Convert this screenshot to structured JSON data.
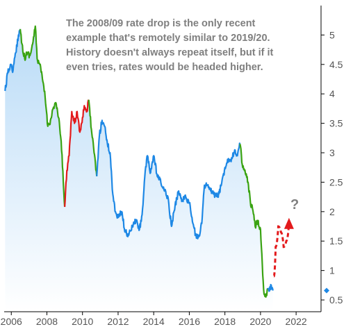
{
  "chart_data": {
    "type": "line",
    "title": "",
    "xlabel": "",
    "ylabel": "",
    "xlim": [
      2005.6,
      2023.4
    ],
    "ylim": [
      0.3,
      5.5
    ],
    "x_ticks": [
      2006,
      2008,
      2010,
      2012,
      2014,
      2016,
      2018,
      2020,
      2022
    ],
    "x_tick_labels": [
      "2006",
      "2008",
      "2010",
      "2012",
      "2014",
      "2016",
      "2018",
      "2020",
      "2022"
    ],
    "y_ticks": [
      0.5,
      1,
      1.5,
      2,
      2.5,
      3,
      3.5,
      4,
      4.5,
      5
    ],
    "y_tick_labels": [
      "0.5",
      "1",
      "1.5",
      "2",
      "2.5",
      "3",
      "3.5",
      "4",
      "4.5",
      "5"
    ],
    "y_axis_position": "right",
    "grid": false,
    "annotation": {
      "lines": [
        "The 2008/09 rate drop is the only recent",
        "example that's remotely similar to 2019/20.",
        "History doesn't always repeat itself, but if it",
        "even tries, rates would be headed higher."
      ],
      "question_mark": "?"
    },
    "last_value_marker": {
      "y": 0.66,
      "color": "#1e88e5"
    },
    "colors": {
      "base_line": "#1e88e5",
      "green": "#3aa312",
      "red": "#e31a1c",
      "projection": "#e31a1c",
      "area_fill_top": "#b9dbf7",
      "area_fill_bottom": "#ffffff",
      "axis": "#000000",
      "annotation_text": "#7f7f7f"
    },
    "series": [
      {
        "color": "blue",
        "x": [
          2005.65,
          2005.8,
          2005.95,
          2006.1,
          2006.25,
          2006.4,
          2006.5
        ],
        "values": [
          4.05,
          4.35,
          4.5,
          4.4,
          4.7,
          5.0,
          5.1
        ]
      },
      {
        "color": "green",
        "x": [
          2006.5,
          2006.6,
          2006.75,
          2006.9,
          2007.05,
          2007.2,
          2007.35,
          2007.45,
          2007.6,
          2007.75,
          2007.9,
          2008.05,
          2008.2,
          2008.35,
          2008.5,
          2008.65,
          2008.8,
          2009.0
        ],
        "values": [
          5.1,
          4.85,
          4.6,
          4.7,
          4.65,
          4.85,
          5.15,
          4.6,
          4.5,
          4.25,
          3.95,
          3.45,
          3.55,
          3.75,
          3.85,
          3.6,
          3.2,
          2.08
        ]
      },
      {
        "color": "red",
        "x": [
          2009.0,
          2009.12,
          2009.25,
          2009.4,
          2009.55,
          2009.7,
          2009.85,
          2010.0,
          2010.1,
          2010.25,
          2010.35
        ],
        "values": [
          2.08,
          2.7,
          2.95,
          3.7,
          3.5,
          3.7,
          3.35,
          3.6,
          3.8,
          3.7,
          3.9
        ]
      },
      {
        "color": "green",
        "x": [
          2010.35,
          2010.5,
          2010.65,
          2010.8
        ],
        "values": [
          3.9,
          3.4,
          3.0,
          2.6
        ]
      },
      {
        "color": "blue",
        "x": [
          2010.8,
          2010.95,
          2011.1,
          2011.25,
          2011.4,
          2011.55,
          2011.7,
          2011.85,
          2012.0,
          2012.2,
          2012.4,
          2012.6,
          2012.8,
          2013.0,
          2013.2,
          2013.35,
          2013.5,
          2013.65,
          2013.8,
          2014.0,
          2014.2,
          2014.4,
          2014.6,
          2014.8,
          2015.0,
          2015.2,
          2015.4,
          2015.6,
          2015.8,
          2016.0,
          2016.2,
          2016.4,
          2016.55,
          2016.7,
          2016.85,
          2017.0,
          2017.2,
          2017.4,
          2017.6,
          2017.8,
          2018.0,
          2018.2,
          2018.4,
          2018.55,
          2018.7,
          2018.85
        ],
        "values": [
          2.6,
          3.3,
          3.55,
          3.45,
          3.15,
          3.0,
          2.3,
          2.0,
          1.9,
          2.0,
          1.65,
          1.6,
          1.75,
          1.85,
          1.7,
          1.95,
          2.6,
          2.95,
          2.65,
          2.95,
          2.6,
          2.5,
          2.35,
          2.25,
          1.75,
          2.1,
          2.35,
          2.2,
          2.25,
          2.15,
          1.8,
          1.55,
          1.6,
          1.8,
          2.45,
          2.45,
          2.35,
          2.3,
          2.25,
          2.45,
          2.75,
          2.9,
          2.9,
          3.05,
          2.95,
          3.15
        ]
      },
      {
        "color": "green",
        "x": [
          2018.85,
          2019.0,
          2019.15,
          2019.3,
          2019.45,
          2019.55,
          2019.7,
          2019.85,
          2020.0,
          2020.1,
          2020.2,
          2020.3,
          2020.4
        ],
        "values": [
          3.15,
          2.75,
          2.65,
          2.5,
          2.1,
          2.05,
          1.75,
          1.85,
          1.7,
          1.1,
          0.6,
          0.55,
          0.7
        ]
      },
      {
        "color": "blue",
        "x": [
          2020.4,
          2020.5,
          2020.6,
          2020.7
        ],
        "values": [
          0.7,
          0.65,
          0.75,
          0.66
        ]
      },
      {
        "color": "red-dashed",
        "x": [
          2020.75,
          2020.85,
          2021.0,
          2021.15,
          2021.3,
          2021.45,
          2021.6
        ],
        "values": [
          0.9,
          1.4,
          1.75,
          1.65,
          1.4,
          1.5,
          1.8
        ]
      }
    ]
  }
}
